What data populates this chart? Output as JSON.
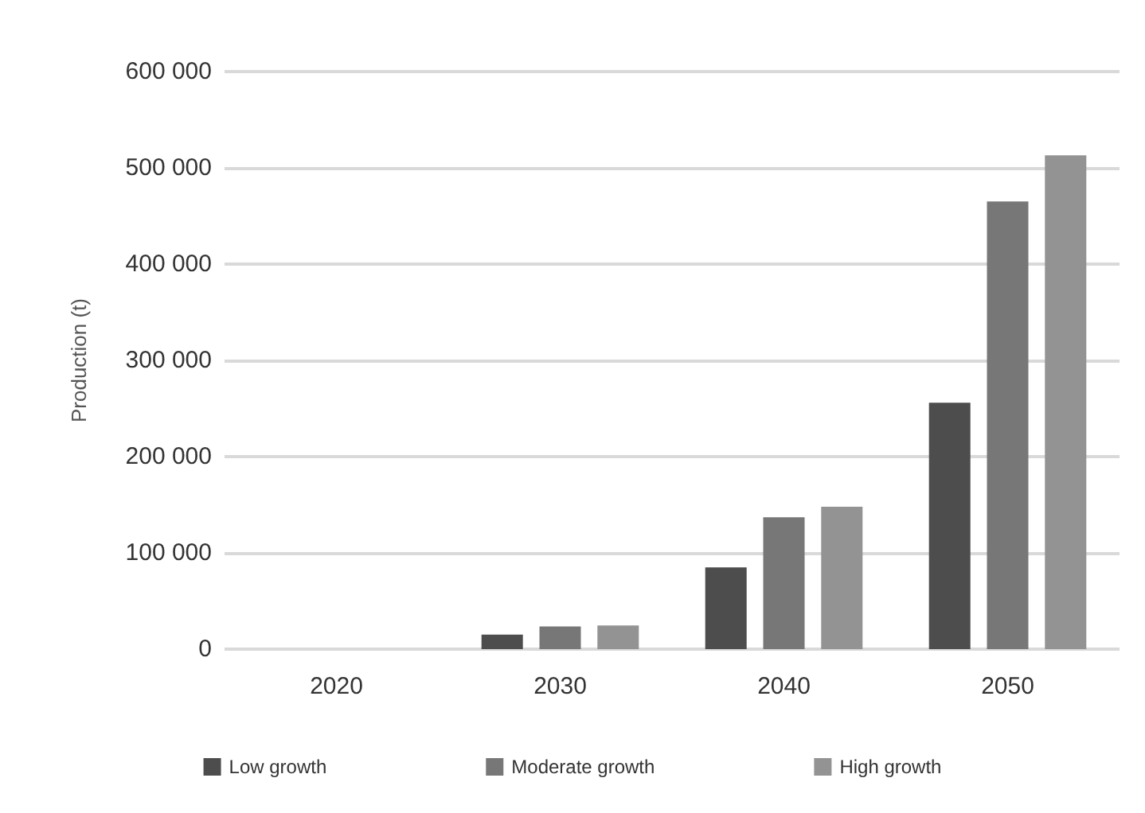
{
  "chart_data": {
    "type": "bar",
    "ylabel": "Production (t)",
    "categories": [
      "2020",
      "2030",
      "2040",
      "2050"
    ],
    "series": [
      {
        "name": "Low growth",
        "color": "#4d4d4d",
        "values": [
          0,
          15000,
          85000,
          256000
        ]
      },
      {
        "name": "Moderate growth",
        "color": "#777777",
        "values": [
          0,
          23500,
          137000,
          465000
        ]
      },
      {
        "name": "High growth",
        "color": "#939393",
        "values": [
          0,
          24500,
          148000,
          513000
        ]
      }
    ],
    "ylim": [
      0,
      600000
    ],
    "yticks": [
      {
        "value": 0,
        "label": "0"
      },
      {
        "value": 100000,
        "label": "100 000"
      },
      {
        "value": 200000,
        "label": "200 000"
      },
      {
        "value": 300000,
        "label": "300 000"
      },
      {
        "value": 400000,
        "label": "400 000"
      },
      {
        "value": 500000,
        "label": "500 000"
      },
      {
        "value": 600000,
        "label": "600 000"
      }
    ],
    "grid": "y",
    "legend": "bottom"
  }
}
